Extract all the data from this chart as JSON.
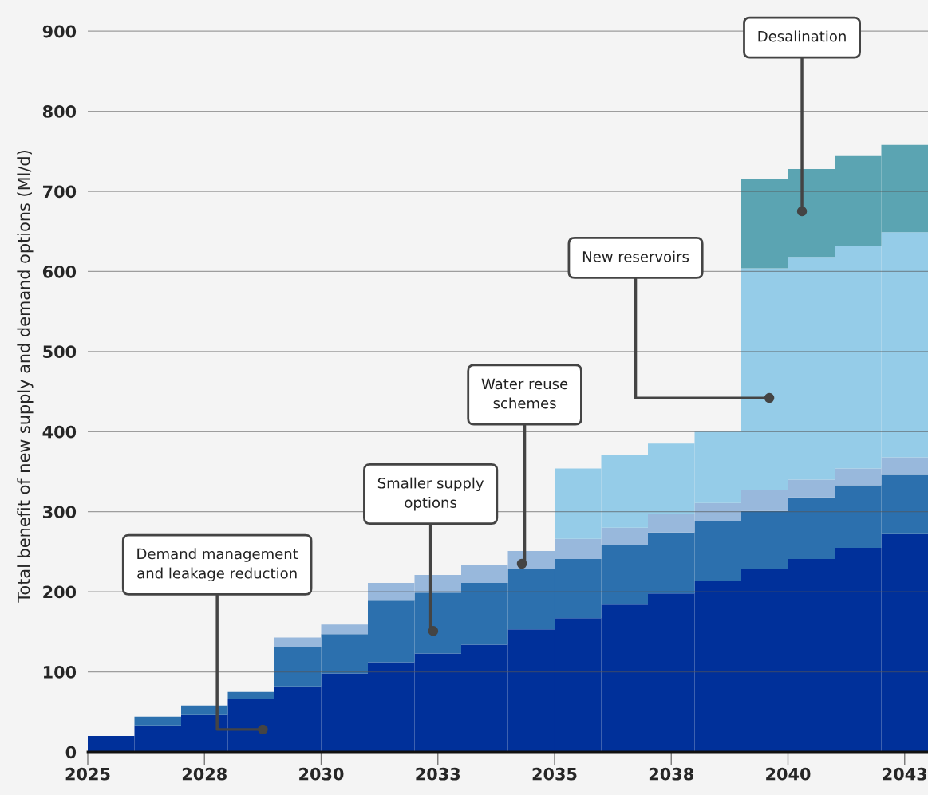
{
  "chart_data": {
    "type": "bar",
    "stacked": true,
    "ylabel": "Total benefit of new supply and demand options (Ml/d)",
    "x": [
      2025.5,
      2026.5,
      2027.5,
      2028.5,
      2029.5,
      2030.5,
      2031.5,
      2032.5,
      2033.5,
      2034.5,
      2035.5,
      2036.5,
      2037.5,
      2038.5,
      2039.5,
      2040.5,
      2041.5,
      2042.5
    ],
    "series": [
      {
        "color": "#00309a",
        "values": [
          20,
          33,
          46,
          66,
          82,
          98,
          112,
          123,
          134,
          153,
          167,
          184,
          198,
          214,
          228,
          241,
          255,
          272
        ]
      },
      {
        "color": "#2c70ae",
        "values": [
          0,
          11,
          12,
          9,
          49,
          49,
          77,
          76,
          77,
          75,
          74,
          74,
          76,
          74,
          73,
          77,
          78,
          74
        ]
      },
      {
        "color": "#98b8dc",
        "values": [
          0,
          0,
          0,
          0,
          12,
          12,
          22,
          22,
          23,
          23,
          25,
          22,
          23,
          23,
          26,
          22,
          21,
          22
        ]
      },
      {
        "color": "#95cce8",
        "values": [
          0,
          0,
          0,
          0,
          0,
          0,
          0,
          0,
          0,
          0,
          88,
          91,
          88,
          89,
          277,
          278,
          278,
          281
        ]
      },
      {
        "color": "#5ba4b2",
        "values": [
          0,
          0,
          0,
          0,
          0,
          0,
          0,
          0,
          0,
          0,
          0,
          0,
          0,
          0,
          111,
          110,
          112,
          109
        ]
      }
    ],
    "xlim": [
      2025,
      2043
    ],
    "xticks": [
      2025,
      {
        "value": 2027.5,
        "label": "2028"
      },
      2030,
      {
        "value": 2032.5,
        "label": "2033"
      },
      2035,
      {
        "value": 2037.5,
        "label": "2038"
      },
      2040,
      {
        "value": 2042.5,
        "label": "2043"
      }
    ],
    "ylim": [
      0,
      939
    ],
    "yticks": [
      0,
      100,
      200,
      300,
      400,
      500,
      600,
      700,
      800,
      900
    ],
    "grid": "y",
    "annotations": [
      {
        "text": "Demand management\nand leakage reduction",
        "x": 2028.75,
        "y": 28
      },
      {
        "text": "Smaller supply\noptions",
        "x": 2032.4,
        "y": 151
      },
      {
        "text": "Water reuse\nschemes",
        "x": 2034.3,
        "y": 235
      },
      {
        "text": "New reservoirs",
        "x": 2039.6,
        "y": 442
      },
      {
        "text": "Desalination",
        "x": 2040.3,
        "y": 675
      }
    ]
  }
}
